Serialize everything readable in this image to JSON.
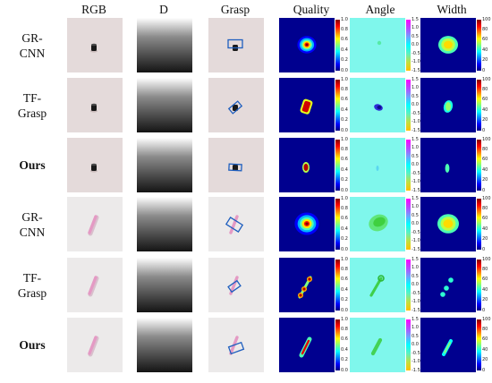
{
  "column_headers": [
    "RGB",
    "D",
    "Grasp",
    "Quality",
    "Angle",
    "Width"
  ],
  "rows": [
    {
      "label": "GR-\nCNN",
      "bold": false,
      "object": "cylinder"
    },
    {
      "label": "TF-\nGrasp",
      "bold": false,
      "object": "cylinder"
    },
    {
      "label": "Ours",
      "bold": true,
      "object": "cylinder"
    },
    {
      "label": "GR-\nCNN",
      "bold": false,
      "object": "stick"
    },
    {
      "label": "TF-\nGrasp",
      "bold": false,
      "object": "stick"
    },
    {
      "label": "Ours",
      "bold": true,
      "object": "stick"
    }
  ],
  "colorbars": {
    "quality": {
      "min": 0.0,
      "max": 1.0,
      "ticks": [
        "1.0",
        "0.8",
        "0.6",
        "0.4",
        "0.2",
        "0.0"
      ]
    },
    "angle": {
      "min": -1.5,
      "max": 1.5,
      "ticks": [
        "1.5",
        "1.0",
        "0.5",
        "0.0",
        "-0.5",
        "-1.0",
        "-1.5"
      ]
    },
    "width": {
      "min": 0,
      "max": 100,
      "ticks": [
        "100",
        "80",
        "60",
        "40",
        "20",
        "0"
      ]
    }
  },
  "colors": {
    "jet_background": "#00008f",
    "angle_background": "#7ff7ec",
    "grasp_box": "#1f5fbf",
    "cylinder": "#1a1a1a",
    "stick": "#e49ac4"
  }
}
